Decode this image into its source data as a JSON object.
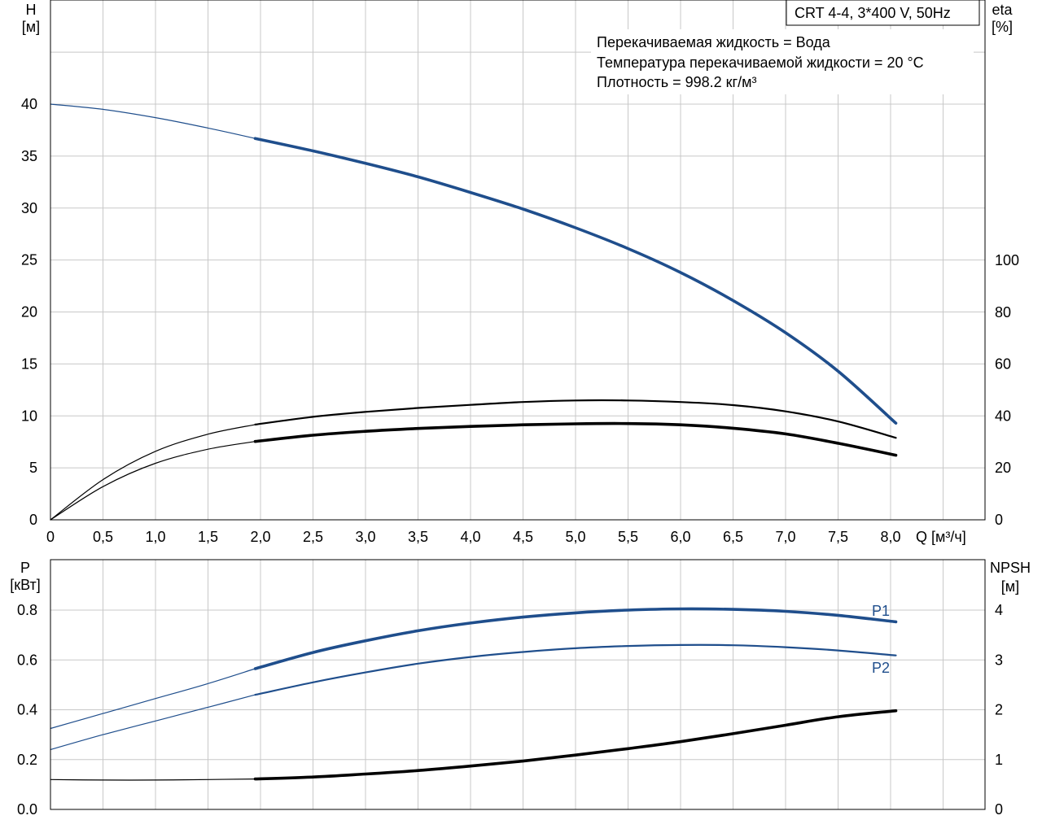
{
  "product_label": "CRT 4-4, 3*400 V, 50Hz",
  "fluid_info": [
    "Перекачиваемая жидкость = Вода",
    "Температура перекачиваемой жидкости = 20 °C",
    "Плотность = 998.2 кг/м³"
  ],
  "colors": {
    "blue": "#1f4e8c",
    "black": "#000000",
    "grid": "#c8c8c8"
  },
  "chart_data": [
    {
      "type": "line",
      "name": "upper",
      "xlabel": "Q [м³/ч]",
      "ylabel_left": [
        "H",
        "[м]"
      ],
      "ylabel_right": [
        "eta",
        "[%]"
      ],
      "xlim": [
        0,
        8.5
      ],
      "ylim_left": [
        0,
        40
      ],
      "ylim_right": [
        0,
        100
      ],
      "grid": true,
      "x_ticks": [
        0,
        0.5,
        1.0,
        1.5,
        2.0,
        2.5,
        3.0,
        3.5,
        4.0,
        4.5,
        5.0,
        5.5,
        6.0,
        6.5,
        7.0,
        7.5,
        8.0
      ],
      "x_tick_labels": [
        "0",
        "0,5",
        "1,0",
        "1,5",
        "2,0",
        "2,5",
        "3,0",
        "3,5",
        "4,0",
        "4,5",
        "5,0",
        "5,5",
        "6,0",
        "6,5",
        "7,0",
        "7,5",
        "8,0"
      ],
      "y_left_ticks": [
        0,
        5,
        10,
        15,
        20,
        25,
        30,
        35,
        40
      ],
      "y_right_ticks": [
        0,
        20,
        40,
        60,
        80,
        100
      ],
      "operating_range": [
        1.95,
        8.05
      ],
      "series": [
        {
          "axis": "left",
          "color": "blue",
          "x": [
            0,
            0.5,
            1.0,
            1.5,
            1.95,
            2.5,
            3.0,
            3.5,
            4.0,
            4.5,
            5.0,
            5.5,
            6.0,
            6.5,
            7.0,
            7.5,
            8.05
          ],
          "y": [
            40.0,
            39.5,
            38.7,
            37.7,
            36.7,
            35.5,
            34.3,
            33.0,
            31.5,
            29.9,
            28.1,
            26.1,
            23.8,
            21.1,
            18.0,
            14.3,
            9.3
          ]
        },
        {
          "axis": "right",
          "color": "black",
          "x": [
            0,
            0.5,
            1.0,
            1.5,
            1.95,
            2.5,
            3.0,
            3.5,
            4.0,
            4.5,
            5.0,
            5.5,
            6.0,
            6.5,
            7.0,
            7.5,
            8.05
          ],
          "y": [
            0,
            12.8,
            21.8,
            27.2,
            30.2,
            32.6,
            34.1,
            35.2,
            36.0,
            36.6,
            37.0,
            37.1,
            36.6,
            35.3,
            33.1,
            29.5,
            24.9
          ]
        },
        {
          "axis": "right",
          "color": "black",
          "x": [
            0,
            0.5,
            1.0,
            1.5,
            1.95,
            2.5,
            3.0,
            3.5,
            4.0,
            4.5,
            5.0,
            5.5,
            6.0,
            6.5,
            7.0,
            7.5,
            8.05
          ],
          "y": [
            0,
            15.5,
            26.4,
            33.0,
            36.7,
            39.7,
            41.6,
            43.1,
            44.3,
            45.4,
            46.0,
            46.0,
            45.4,
            44.2,
            41.8,
            37.9,
            31.6
          ]
        }
      ]
    },
    {
      "type": "line",
      "name": "lower",
      "ylabel_left": [
        "P",
        "[кВт]"
      ],
      "ylabel_right": [
        "NPSH",
        "[м]"
      ],
      "xlim": [
        0,
        8.5
      ],
      "ylim_left": [
        0,
        1.0
      ],
      "ylim_right": [
        0,
        5
      ],
      "grid": true,
      "y_left_ticks": [
        0.0,
        0.2,
        0.4,
        0.6,
        0.8
      ],
      "y_left_tick_labels": [
        "0.0",
        "0.2",
        "0.4",
        "0.6",
        "0.8"
      ],
      "y_right_ticks": [
        0,
        1,
        2,
        3,
        4
      ],
      "operating_range": [
        1.95,
        8.05
      ],
      "series": [
        {
          "name": "P1",
          "axis": "left",
          "color": "blue",
          "x": [
            0,
            0.5,
            1.0,
            1.5,
            1.95,
            2.5,
            3.0,
            3.5,
            4.0,
            4.5,
            5.0,
            5.5,
            6.0,
            6.5,
            7.0,
            7.5,
            8.05
          ],
          "y": [
            0.325,
            0.385,
            0.445,
            0.505,
            0.565,
            0.63,
            0.677,
            0.717,
            0.748,
            0.772,
            0.789,
            0.8,
            0.805,
            0.803,
            0.795,
            0.779,
            0.753
          ]
        },
        {
          "name": "P2",
          "axis": "left",
          "color": "blue",
          "x": [
            0,
            0.5,
            1.0,
            1.5,
            1.95,
            2.5,
            3.0,
            3.5,
            4.0,
            4.5,
            5.0,
            5.5,
            6.0,
            6.5,
            7.0,
            7.5,
            8.05
          ],
          "y": [
            0.24,
            0.3,
            0.355,
            0.41,
            0.46,
            0.51,
            0.55,
            0.585,
            0.612,
            0.632,
            0.647,
            0.656,
            0.66,
            0.659,
            0.651,
            0.638,
            0.618
          ]
        },
        {
          "axis": "right",
          "color": "black",
          "x": [
            0,
            0.5,
            1.0,
            1.5,
            1.95,
            2.5,
            3.0,
            3.5,
            4.0,
            4.5,
            5.0,
            5.5,
            6.0,
            6.5,
            7.0,
            7.5,
            8.05
          ],
          "y": [
            0.6,
            0.59,
            0.59,
            0.6,
            0.61,
            0.65,
            0.71,
            0.78,
            0.87,
            0.97,
            1.09,
            1.22,
            1.36,
            1.52,
            1.69,
            1.86,
            1.98
          ]
        }
      ]
    }
  ]
}
